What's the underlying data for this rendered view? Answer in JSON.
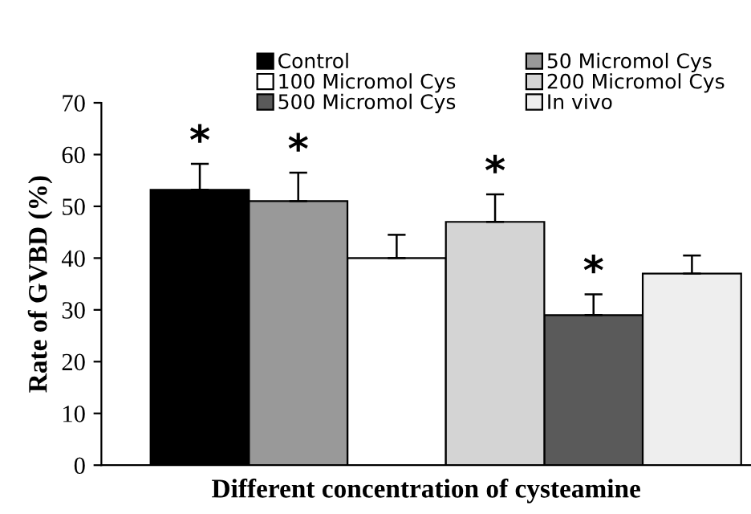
{
  "chart_data": {
    "type": "bar",
    "xlabel": "Different concentration of cysteamine",
    "ylabel": "Rate of GVBD (%)",
    "categories": [
      null,
      null,
      null,
      null,
      null,
      null
    ],
    "series": [
      {
        "name": "Control",
        "color": "#000000",
        "values": [
          53.2,
          null,
          null,
          null,
          null,
          null
        ],
        "errors": [
          5,
          null,
          null,
          null,
          null,
          null
        ],
        "value_labels": [
          "*",
          null,
          null,
          null,
          null,
          null
        ]
      },
      {
        "name": "100 Micromol Cys",
        "color": "#ffffff",
        "values": [
          null,
          null,
          40,
          null,
          null,
          null
        ],
        "errors": [
          null,
          null,
          4.5,
          null,
          null,
          null
        ],
        "value_labels": [
          null,
          null,
          null,
          null,
          null,
          null
        ]
      },
      {
        "name": "500 Micromol Cys",
        "color": "#5a5a5a",
        "values": [
          null,
          null,
          null,
          null,
          29,
          null
        ],
        "errors": [
          null,
          null,
          null,
          null,
          4,
          null
        ],
        "value_labels": [
          null,
          null,
          null,
          null,
          "*",
          null
        ]
      },
      {
        "name": "50 Micromol Cys",
        "color": "#999999",
        "values": [
          null,
          51,
          null,
          null,
          null,
          null
        ],
        "errors": [
          null,
          5.5,
          null,
          null,
          null,
          null
        ],
        "value_labels": [
          null,
          "*",
          null,
          null,
          null,
          null
        ]
      },
      {
        "name": "200 Micromol Cys",
        "color": "#d4d4d4",
        "values": [
          null,
          null,
          null,
          47,
          null,
          null
        ],
        "errors": [
          null,
          null,
          null,
          5.3,
          null,
          null
        ],
        "value_labels": [
          null,
          null,
          null,
          "*",
          null,
          null
        ]
      },
      {
        "name": "In vivo",
        "color": "#eeeeee",
        "values": [
          null,
          null,
          null,
          null,
          null,
          37
        ],
        "errors": [
          null,
          null,
          null,
          null,
          null,
          3.5
        ],
        "value_labels": [
          null,
          null,
          null,
          null,
          null,
          null
        ]
      }
    ],
    "ylim": [
      0,
      70
    ],
    "yticks": [
      0,
      10,
      20,
      30,
      40,
      50,
      60,
      70
    ],
    "tick_labels": "y",
    "grid": false,
    "legend": "top"
  }
}
